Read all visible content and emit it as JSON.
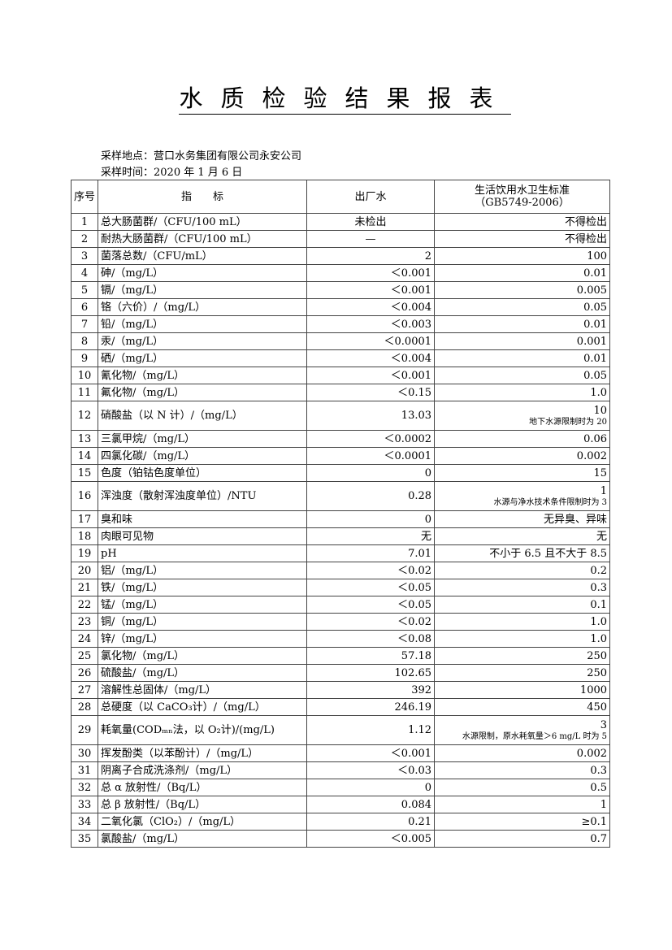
{
  "title": "水质检验结果报表",
  "location": "采样地点：营口水务集团有限公司永安公司",
  "date": "采样时间：2020 年 1 月 6 日",
  "headers": {
    "no": "序号",
    "name": "指　　标",
    "value": "出厂水",
    "std": "生活饮用水卫生标准",
    "std_code": "（GB5749-2006）"
  },
  "rows": [
    {
      "no": "1",
      "name": "总大肠菌群/（CFU/100 mL）",
      "value": "未检出",
      "std": "不得检出",
      "center": true
    },
    {
      "no": "2",
      "name": "耐热大肠菌群/（CFU/100 mL）",
      "value": "—",
      "std": "不得检出",
      "center": true
    },
    {
      "no": "3",
      "name": "菌落总数/（CFU/mL）",
      "value": "2",
      "std": "100"
    },
    {
      "no": "4",
      "name": "砷/（mg/L）",
      "value": "＜0.001",
      "std": "0.01"
    },
    {
      "no": "5",
      "name": "镉/（mg/L）",
      "value": "＜0.001",
      "std": "0.005"
    },
    {
      "no": "6",
      "name": "铬（六价）/（mg/L）",
      "value": "＜0.004",
      "std": "0.05"
    },
    {
      "no": "7",
      "name": "铅/（mg/L）",
      "value": "＜0.003",
      "std": "0.01"
    },
    {
      "no": "8",
      "name": "汞/（mg/L）",
      "value": "＜0.0001",
      "std": "0.001"
    },
    {
      "no": "9",
      "name": "硒/（mg/L）",
      "value": "＜0.004",
      "std": "0.01"
    },
    {
      "no": "10",
      "name": "氰化物/（mg/L）",
      "value": "＜0.001",
      "std": "0.05"
    },
    {
      "no": "11",
      "name": "氟化物/（mg/L）",
      "value": "＜0.15",
      "std": "1.0"
    },
    {
      "no": "12",
      "name": "硝酸盐（以 N 计）/（mg/L）",
      "value": "13.03",
      "std": "10",
      "note": "地下水源限制时为 20"
    },
    {
      "no": "13",
      "name": "三氯甲烷/（mg/L）",
      "value": "＜0.0002",
      "std": "0.06"
    },
    {
      "no": "14",
      "name": "四氯化碳/（mg/L）",
      "value": "＜0.0001",
      "std": "0.002"
    },
    {
      "no": "15",
      "name": "色度（铂钴色度单位）",
      "value": "0",
      "std": "15"
    },
    {
      "no": "16",
      "name": "浑浊度（散射浑浊度单位）/NTU",
      "value": "0.28",
      "std": "1",
      "note": "水源与净水技术条件限制时为 3"
    },
    {
      "no": "17",
      "name": "臭和味",
      "value": "0",
      "std": "无异臭、异味"
    },
    {
      "no": "18",
      "name": "肉眼可见物",
      "value": "无",
      "std": "无"
    },
    {
      "no": "19",
      "name": "pH",
      "value": "7.01",
      "std": "不小于 6.5 且不大于 8.5"
    },
    {
      "no": "20",
      "name": "铝/（mg/L）",
      "value": "＜0.02",
      "std": "0.2"
    },
    {
      "no": "21",
      "name": "铁/（mg/L）",
      "value": "＜0.05",
      "std": "0.3"
    },
    {
      "no": "22",
      "name": "锰/（mg/L）",
      "value": "＜0.05",
      "std": "0.1"
    },
    {
      "no": "23",
      "name": "铜/（mg/L）",
      "value": "＜0.02",
      "std": "1.0"
    },
    {
      "no": "24",
      "name": "锌/（mg/L）",
      "value": "＜0.08",
      "std": "1.0"
    },
    {
      "no": "25",
      "name": "氯化物/（mg/L）",
      "value": "57.18",
      "std": "250"
    },
    {
      "no": "26",
      "name": "硫酸盐/（mg/L）",
      "value": "102.65",
      "std": "250"
    },
    {
      "no": "27",
      "name": "溶解性总固体/（mg/L）",
      "value": "392",
      "std": "1000"
    },
    {
      "no": "28",
      "name": "总硬度（以 CaCO₃计）/（mg/L）",
      "value": "246.19",
      "std": "450"
    },
    {
      "no": "29",
      "name": "耗氧量(CODₘₙ法，以 O₂计)/(mg/L)",
      "value": "1.12",
      "std": "3",
      "note": "水源限制，原水耗氧量＞6 mg/L 时为 5"
    },
    {
      "no": "30",
      "name": "挥发酚类（以苯酚计）/（mg/L）",
      "value": "＜0.001",
      "std": "0.002"
    },
    {
      "no": "31",
      "name": "阴离子合成洗涤剂/（mg/L）",
      "value": "＜0.03",
      "std": "0.3"
    },
    {
      "no": "32",
      "name": "总 α 放射性/（Bq/L）",
      "value": "0",
      "std": "0.5"
    },
    {
      "no": "33",
      "name": "总 β 放射性/（Bq/L）",
      "value": "0.084",
      "std": "1"
    },
    {
      "no": "34",
      "name": "二氧化氯（ClO₂）/（mg/L）",
      "value": "0.21",
      "std": "≥0.1"
    },
    {
      "no": "35",
      "name": "氯酸盐/（mg/L）",
      "value": "＜0.005",
      "std": "0.7"
    }
  ]
}
